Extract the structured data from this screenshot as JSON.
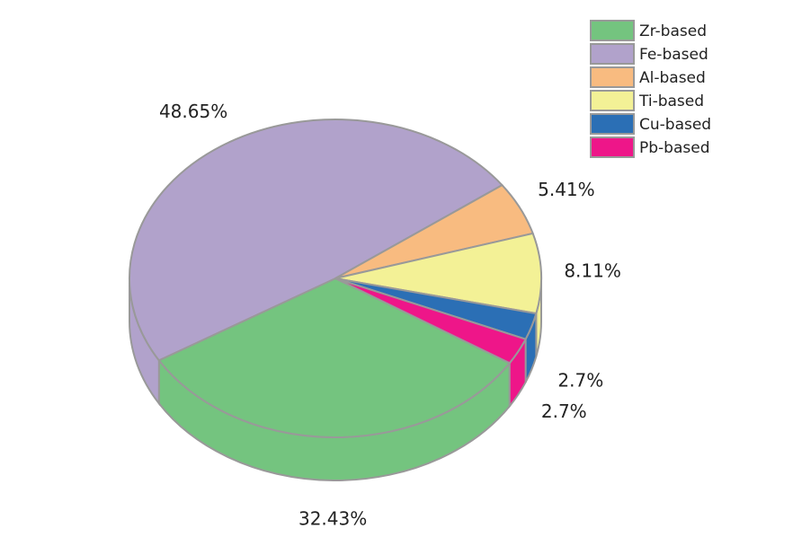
{
  "chart_data": {
    "type": "pie",
    "categories": [
      "Zr-based",
      "Fe-based",
      "Al-based",
      "Ti-based",
      "Cu-based",
      "Pb-based"
    ],
    "values": [
      32.43,
      48.65,
      5.41,
      8.11,
      2.7,
      2.7
    ],
    "value_labels": [
      "32.43%",
      "48.65%",
      "5.41%",
      "8.11%",
      "2.7%",
      "2.7%"
    ],
    "colors": [
      "#74c47f",
      "#b1a2cb",
      "#f8bb80",
      "#f3f196",
      "#2b6fb5",
      "#ee1689"
    ],
    "legend": "top-right"
  }
}
